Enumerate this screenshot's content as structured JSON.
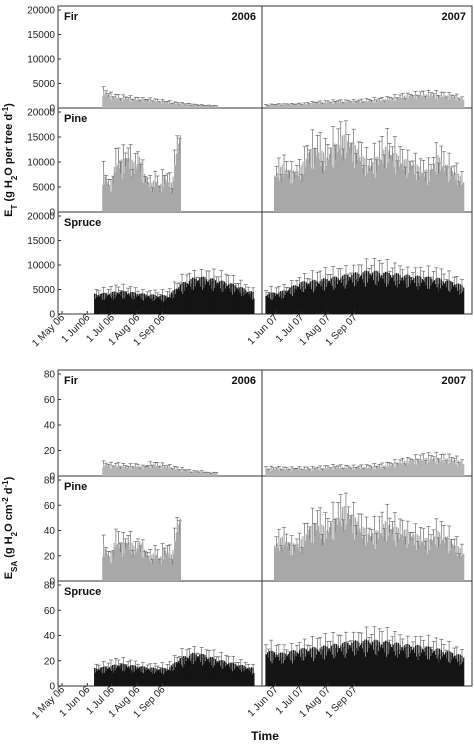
{
  "figure": {
    "x_title": "Time",
    "colors": {
      "fir": "#b4b4b4",
      "pine": "#a8a8a8",
      "spruce": "#141414",
      "frame": "#333333"
    }
  },
  "chart_data": [
    {
      "type": "bar",
      "ylabel_main": "E",
      "ylabel_sub": "T",
      "ylabel_rest": " (g H",
      "ylabel_h2o_sub": "2",
      "ylabel_end": "O per tree d",
      "ylabel_sup": "-1",
      "ylabel_close": ")",
      "years": [
        "2006",
        "2007"
      ],
      "x_ticks": [
        [
          "1 May 06",
          "1 Jun06",
          "1 Jul 06",
          "1 Aug 06",
          "1 Sep 06"
        ],
        [
          "1 Jun 07",
          "1 Jul 07",
          "1 Aug 07",
          "1 Sep 07"
        ]
      ],
      "species": [
        {
          "name": "Fir",
          "ylim": [
            0,
            20000
          ],
          "yticks": [
            "0",
            "5000",
            "10000",
            "15000",
            "20000"
          ],
          "series": [
            [
              [
                50,
                3000
              ],
              [
                60,
                2100
              ],
              [
                70,
                1800
              ],
              [
                80,
                1700
              ],
              [
                90,
                1600
              ],
              [
                100,
                1500
              ],
              [
                110,
                1400
              ],
              [
                120,
                1200
              ],
              [
                130,
                1000
              ],
              [
                140,
                800
              ],
              [
                150,
                700
              ],
              [
                160,
                600
              ],
              [
                170,
                500
              ],
              [
                180,
                400
              ],
              [
                190,
                300
              ]
            ],
            [
              [
                0,
                500
              ],
              [
                20,
                600
              ],
              [
                40,
                700
              ],
              [
                60,
                900
              ],
              [
                80,
                1100
              ],
              [
                100,
                1200
              ],
              [
                120,
                1300
              ],
              [
                140,
                1500
              ],
              [
                160,
                2100
              ],
              [
                180,
                2400
              ],
              [
                200,
                2300
              ],
              [
                220,
                2000
              ],
              [
                230,
                1600
              ]
            ]
          ]
        },
        {
          "name": "Pine",
          "ylim": [
            0,
            20000
          ],
          "yticks": [
            "0",
            "5000",
            "10000",
            "15000",
            "20000"
          ],
          "series": [
            [
              [
                50,
                7000
              ],
              [
                55,
                5500
              ],
              [
                60,
                4200
              ],
              [
                65,
                8500
              ],
              [
                70,
                9000
              ],
              [
                75,
                8700
              ],
              [
                80,
                10000
              ],
              [
                85,
                8800
              ],
              [
                90,
                8300
              ],
              [
                95,
                9500
              ],
              [
                100,
                6800
              ],
              [
                105,
                5400
              ],
              [
                110,
                4900
              ],
              [
                115,
                5800
              ],
              [
                120,
                4400
              ],
              [
                125,
                6200
              ],
              [
                130,
                5400
              ],
              [
                135,
                4800
              ],
              [
                140,
                10500
              ],
              [
                145,
                13000
              ]
            ],
            [
              [
                10,
                6500
              ],
              [
                20,
                8000
              ],
              [
                30,
                7000
              ],
              [
                40,
                7500
              ],
              [
                50,
                10500
              ],
              [
                60,
                11000
              ],
              [
                70,
                9500
              ],
              [
                80,
                11500
              ],
              [
                90,
                13000
              ],
              [
                100,
                12000
              ],
              [
                110,
                10000
              ],
              [
                120,
                8000
              ],
              [
                130,
                9500
              ],
              [
                140,
                11000
              ],
              [
                150,
                10000
              ],
              [
                160,
                9000
              ],
              [
                170,
                8500
              ],
              [
                180,
                7500
              ],
              [
                190,
                7000
              ],
              [
                200,
                9500
              ],
              [
                210,
                8000
              ],
              [
                220,
                7000
              ],
              [
                230,
                5500
              ]
            ]
          ]
        },
        {
          "name": "Spruce",
          "ylim": [
            0,
            20000
          ],
          "yticks": [
            "0",
            "5000",
            "10000",
            "15000",
            "20000"
          ],
          "series": [
            [
              [
                40,
                3500
              ],
              [
                55,
                3600
              ],
              [
                70,
                4000
              ],
              [
                85,
                3800
              ],
              [
                100,
                3500
              ],
              [
                115,
                3300
              ],
              [
                130,
                3200
              ],
              [
                145,
                5200
              ],
              [
                160,
                6200
              ],
              [
                175,
                6400
              ],
              [
                190,
                5900
              ],
              [
                205,
                5400
              ],
              [
                220,
                4600
              ],
              [
                235,
                3700
              ]
            ],
            [
              [
                0,
                3500
              ],
              [
                20,
                4000
              ],
              [
                40,
                5500
              ],
              [
                60,
                5900
              ],
              [
                80,
                6400
              ],
              [
                100,
                7000
              ],
              [
                120,
                7500
              ],
              [
                140,
                7200
              ],
              [
                160,
                6800
              ],
              [
                180,
                6500
              ],
              [
                200,
                6200
              ],
              [
                220,
                5500
              ],
              [
                230,
                4800
              ]
            ]
          ]
        }
      ]
    },
    {
      "type": "bar",
      "ylabel_main": "E",
      "ylabel_sub": "SA",
      "ylabel_rest": " (g H",
      "ylabel_h2o_sub": "2",
      "ylabel_end": "O cm",
      "ylabel_sup": "-2",
      "ylabel_close": " d",
      "ylabel_sup2": "-1",
      "ylabel_close2": ")",
      "years": [
        "2006",
        "2007"
      ],
      "x_ticks": [
        [
          "1 May 06",
          "1 Jun 06",
          "1 Jul 06",
          "1 Aug 06",
          "1 Sep 06"
        ],
        [
          "1 Jun 07",
          "1 Jul 07",
          "1 Aug 07",
          "1 Sep 07"
        ]
      ],
      "species": [
        {
          "name": "Fir",
          "ylim": [
            0,
            80
          ],
          "yticks": [
            "0",
            "20",
            "40",
            "60",
            "80"
          ],
          "series": [
            [
              [
                50,
                8
              ],
              [
                60,
                7
              ],
              [
                70,
                7
              ],
              [
                80,
                6
              ],
              [
                90,
                7
              ],
              [
                100,
                6
              ],
              [
                110,
                8
              ],
              [
                120,
                7
              ],
              [
                130,
                6
              ],
              [
                140,
                5
              ],
              [
                150,
                4
              ],
              [
                160,
                3
              ],
              [
                170,
                3
              ],
              [
                180,
                2
              ],
              [
                190,
                2
              ]
            ],
            [
              [
                0,
                5
              ],
              [
                20,
                5
              ],
              [
                40,
                5
              ],
              [
                60,
                5
              ],
              [
                80,
                6
              ],
              [
                100,
                6
              ],
              [
                120,
                6
              ],
              [
                140,
                7
              ],
              [
                160,
                10
              ],
              [
                180,
                12
              ],
              [
                200,
                12
              ],
              [
                220,
                11
              ],
              [
                230,
                9
              ]
            ]
          ]
        },
        {
          "name": "Pine",
          "ylim": [
            0,
            80
          ],
          "yticks": [
            "0",
            "20",
            "40",
            "60",
            "80"
          ],
          "series": [
            [
              [
                50,
                25
              ],
              [
                55,
                20
              ],
              [
                60,
                15
              ],
              [
                65,
                28
              ],
              [
                70,
                27
              ],
              [
                75,
                25
              ],
              [
                80,
                28
              ],
              [
                85,
                26
              ],
              [
                90,
                22
              ],
              [
                95,
                27
              ],
              [
                100,
                22
              ],
              [
                105,
                18
              ],
              [
                110,
                17
              ],
              [
                115,
                20
              ],
              [
                120,
                15
              ],
              [
                125,
                22
              ],
              [
                130,
                20
              ],
              [
                135,
                17
              ],
              [
                140,
                35
              ],
              [
                145,
                42
              ]
            ],
            [
              [
                10,
                25
              ],
              [
                20,
                30
              ],
              [
                30,
                25
              ],
              [
                40,
                27
              ],
              [
                50,
                36
              ],
              [
                60,
                40
              ],
              [
                70,
                35
              ],
              [
                80,
                42
              ],
              [
                90,
                50
              ],
              [
                100,
                45
              ],
              [
                110,
                38
              ],
              [
                120,
                32
              ],
              [
                130,
                34
              ],
              [
                140,
                40
              ],
              [
                150,
                36
              ],
              [
                160,
                35
              ],
              [
                170,
                32
              ],
              [
                180,
                30
              ],
              [
                190,
                28
              ],
              [
                200,
                33
              ],
              [
                210,
                30
              ],
              [
                220,
                25
              ],
              [
                230,
                20
              ]
            ]
          ]
        },
        {
          "name": "Spruce",
          "ylim": [
            0,
            80
          ],
          "yticks": [
            "0",
            "20",
            "40",
            "60",
            "80"
          ],
          "series": [
            [
              [
                40,
                12
              ],
              [
                55,
                13
              ],
              [
                70,
                15
              ],
              [
                85,
                14
              ],
              [
                100,
                13
              ],
              [
                115,
                12
              ],
              [
                130,
                12
              ],
              [
                145,
                19
              ],
              [
                160,
                22
              ],
              [
                175,
                21
              ],
              [
                190,
                18
              ],
              [
                205,
                16
              ],
              [
                220,
                14
              ],
              [
                235,
                12
              ]
            ],
            [
              [
                0,
                24
              ],
              [
                20,
                22
              ],
              [
                40,
                25
              ],
              [
                60,
                26
              ],
              [
                80,
                28
              ],
              [
                100,
                30
              ],
              [
                120,
                31
              ],
              [
                140,
                30
              ],
              [
                160,
                28
              ],
              [
                180,
                27
              ],
              [
                200,
                25
              ],
              [
                220,
                22
              ],
              [
                230,
                20
              ]
            ]
          ]
        }
      ]
    }
  ]
}
